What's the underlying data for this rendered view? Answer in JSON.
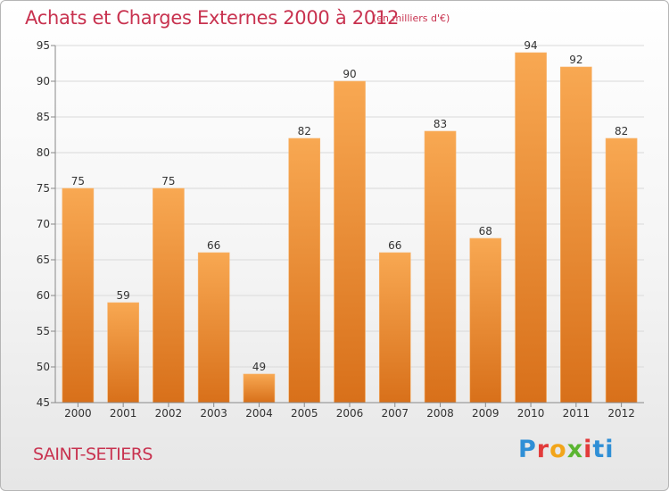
{
  "chart_data": {
    "type": "bar",
    "title": "Achats et Charges Externes 2000 à 2012",
    "subtitle": "(en milliers d'€)",
    "categories": [
      "2000",
      "2001",
      "2002",
      "2003",
      "2004",
      "2005",
      "2006",
      "2007",
      "2008",
      "2009",
      "2010",
      "2011",
      "2012"
    ],
    "values": [
      75,
      59,
      75,
      66,
      49,
      82,
      90,
      66,
      83,
      68,
      94,
      92,
      82
    ],
    "ylim": [
      45,
      95
    ],
    "yticks": [
      45,
      50,
      55,
      60,
      65,
      70,
      75,
      80,
      85,
      90,
      95
    ],
    "grid": true,
    "bar_color": "#f0902e"
  },
  "place_name": "SAINT-SETIERS",
  "logo": {
    "text": "Proxiti"
  },
  "colors": {
    "title": "#c8324f",
    "bar": "#f0902e",
    "bar_dark": "#d86e14"
  }
}
